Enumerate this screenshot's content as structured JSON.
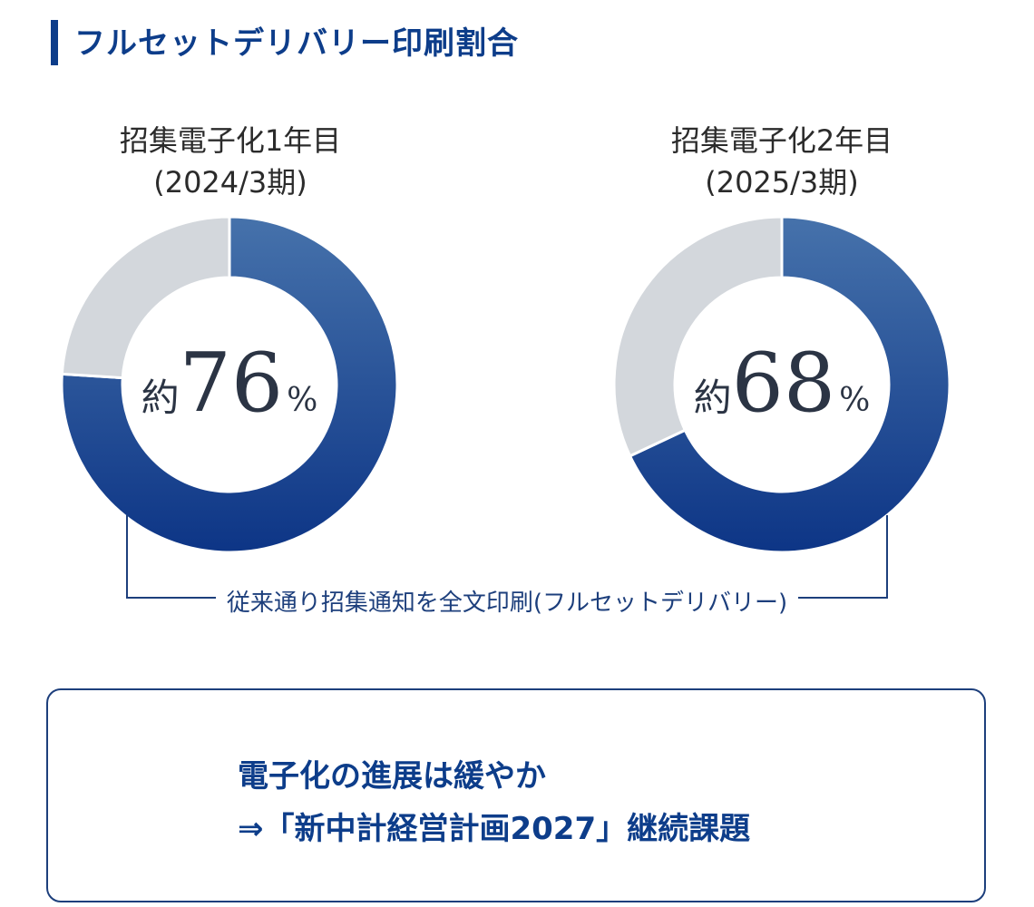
{
  "title": "フルセットデリバリー印刷割合",
  "chart_data": [
    {
      "type": "pie",
      "title_line1": "招集電子化1年目",
      "title_line2": "(2024/3期)",
      "values": [
        76,
        24
      ],
      "center_prefix": "約",
      "center_value": "76",
      "center_unit": "%",
      "colors": [
        "#0d3d8a",
        "#d3d7dc"
      ]
    },
    {
      "type": "pie",
      "title_line1": "招集電子化2年目",
      "title_line2": "(2025/3期)",
      "values": [
        68,
        32
      ],
      "center_prefix": "約",
      "center_value": "68",
      "center_unit": "%",
      "colors": [
        "#0d3d8a",
        "#d3d7dc"
      ]
    }
  ],
  "annotation": "従来通り招集通知を全文印刷(フルセットデリバリー)",
  "conclusion": {
    "line1": "電子化の進展は緩やか",
    "line2": "⇒「新中計経営計画2027」継続課題"
  }
}
